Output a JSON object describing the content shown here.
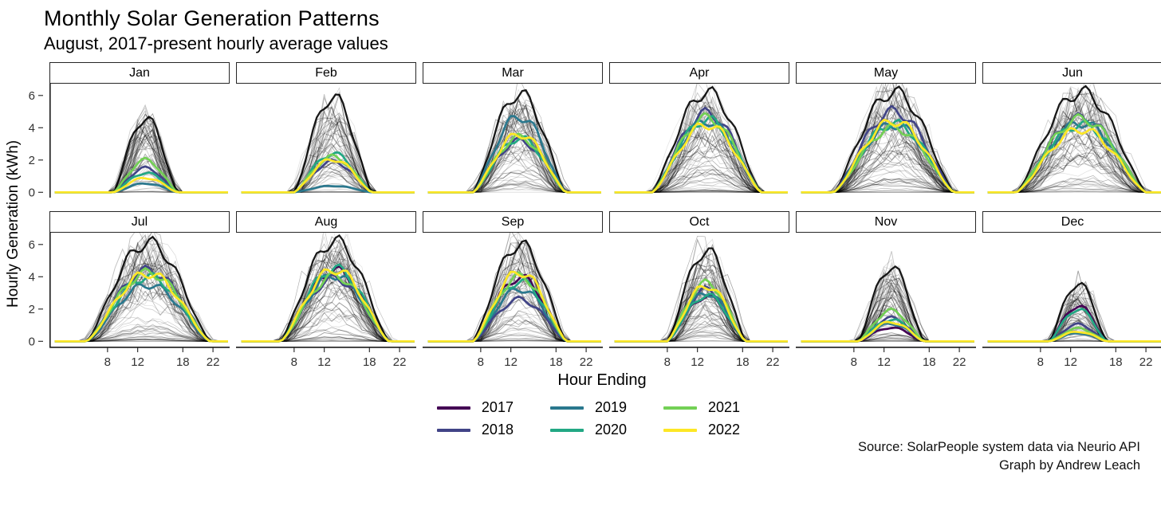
{
  "header": {
    "title": "Monthly Solar Generation Patterns",
    "subtitle": "August, 2017-present hourly average values"
  },
  "axis": {
    "x_label": "Hour Ending",
    "y_label": "Hourly Generation (kWh)",
    "x_ticks": [
      8,
      12,
      18,
      22
    ],
    "y_ticks": [
      0,
      2,
      4,
      6
    ]
  },
  "legend": {
    "entries": [
      {
        "label": "2017",
        "color": "#440154"
      },
      {
        "label": "2018",
        "color": "#414487"
      },
      {
        "label": "2019",
        "color": "#2a788e"
      },
      {
        "label": "2020",
        "color": "#22a884"
      },
      {
        "label": "2021",
        "color": "#73d055"
      },
      {
        "label": "2022",
        "color": "#fde725"
      }
    ]
  },
  "caption": {
    "line1": "Source: SolarPeople system data via Neurio API",
    "line2": "Graph by Andrew Leach"
  },
  "chart_data": {
    "type": "line",
    "title": "Monthly Solar Generation Patterns",
    "subtitle": "August, 2017-present hourly average values",
    "xlabel": "Hour Ending",
    "ylabel": "Hourly Generation (kWh)",
    "x_range": [
      1,
      24
    ],
    "ylim": [
      0,
      6.5
    ],
    "x_ticks": [
      8,
      12,
      18,
      22
    ],
    "y_ticks": [
      0,
      2,
      4,
      6
    ],
    "facets": [
      "Jan",
      "Feb",
      "Mar",
      "Apr",
      "May",
      "Jun",
      "Jul",
      "Aug",
      "Sep",
      "Oct",
      "Nov",
      "Dec"
    ],
    "series_colors": {
      "2017": "#440154",
      "2018": "#414487",
      "2019": "#2a788e",
      "2020": "#22a884",
      "2021": "#73d055",
      "2022": "#fde725"
    },
    "background_lines": "thin gray lines = individual day hourly profiles; thick black line = clear-day envelope",
    "note": "Colored lines are monthly hourly-average generation per year; 2017 data begins in August. Values below are approximate peak kWh read from the chart, with daylight span (first/last generating hour ending).",
    "months": [
      {
        "label": "Jan",
        "daylight": [
          8.8,
          17.3
        ],
        "gray_max": 4.6,
        "peak_hour": 12.5,
        "peaks": {
          "2018": 1.5,
          "2019": 0.55,
          "2020": 1.2,
          "2021": 2.0,
          "2022": 0.9
        }
      },
      {
        "label": "Feb",
        "daylight": [
          8.0,
          18.3
        ],
        "gray_max": 5.9,
        "peak_hour": 12.5,
        "peaks": {
          "2018": 1.9,
          "2019": 0.4,
          "2020": 2.4,
          "2021": 2.2,
          "2022": 2.05
        }
      },
      {
        "label": "Mar",
        "daylight": [
          7.0,
          19.3
        ],
        "gray_max": 6.1,
        "peak_hour": 12.5,
        "peaks": {
          "2018": 3.2,
          "2019": 4.7,
          "2020": 3.35,
          "2021": 3.4,
          "2022": 3.6
        }
      },
      {
        "label": "Apr",
        "daylight": [
          6.0,
          20.5
        ],
        "gray_max": 6.2,
        "peak_hour": 13.0,
        "peaks": {
          "2018": 4.9,
          "2019": 4.4,
          "2020": 4.5,
          "2021": 4.6,
          "2022": 4.2
        }
      },
      {
        "label": "May",
        "daylight": [
          5.3,
          21.3
        ],
        "gray_max": 6.2,
        "peak_hour": 13.0,
        "peaks": {
          "2018": 5.0,
          "2019": 4.2,
          "2020": 4.25,
          "2021": 4.0,
          "2022": 4.4
        }
      },
      {
        "label": "Jun",
        "daylight": [
          4.8,
          22.0
        ],
        "gray_max": 6.2,
        "peak_hour": 12.5,
        "peaks": {
          "2018": 4.6,
          "2019": 4.3,
          "2020": 4.2,
          "2021": 4.55,
          "2022": 3.9
        }
      },
      {
        "label": "Jul",
        "daylight": [
          5.2,
          21.6
        ],
        "gray_max": 6.1,
        "peak_hour": 12.5,
        "peaks": {
          "2018": 4.4,
          "2019": 3.5,
          "2020": 4.0,
          "2021": 4.25,
          "2022": 4.2
        }
      },
      {
        "label": "Aug",
        "daylight": [
          6.2,
          20.6
        ],
        "gray_max": 6.2,
        "peak_hour": 12.5,
        "peaks": {
          "2017": 4.4,
          "2018": 3.9,
          "2019": 4.1,
          "2020": 4.5,
          "2021": 4.05,
          "2022": 4.45
        }
      },
      {
        "label": "Sep",
        "daylight": [
          7.0,
          19.4
        ],
        "gray_max": 6.0,
        "peak_hour": 12.5,
        "peaks": {
          "2017": 3.95,
          "2018": 2.6,
          "2019": 3.25,
          "2020": 3.7,
          "2021": 4.0,
          "2022": 4.3
        }
      },
      {
        "label": "Oct",
        "daylight": [
          8.0,
          18.4
        ],
        "gray_max": 5.6,
        "peak_hour": 12.0,
        "peaks": {
          "2017": 2.8,
          "2018": 3.2,
          "2019": 3.0,
          "2020": 2.85,
          "2021": 3.6,
          "2022": 3.45
        }
      },
      {
        "label": "Nov",
        "daylight": [
          8.6,
          17.3
        ],
        "gray_max": 4.6,
        "peak_hour": 12.0,
        "peaks": {
          "2017": 0.85,
          "2018": 1.45,
          "2019": 1.1,
          "2020": 1.35,
          "2021": 1.9,
          "2022": 1.2
        }
      },
      {
        "label": "Dec",
        "daylight": [
          9.2,
          16.8
        ],
        "gray_max": 3.6,
        "peak_hour": 12.5,
        "peaks": {
          "2017": 2.2,
          "2018": 1.05,
          "2019": 0.5,
          "2020": 2.0,
          "2021": 0.8,
          "2022": 0.6
        }
      }
    ]
  }
}
